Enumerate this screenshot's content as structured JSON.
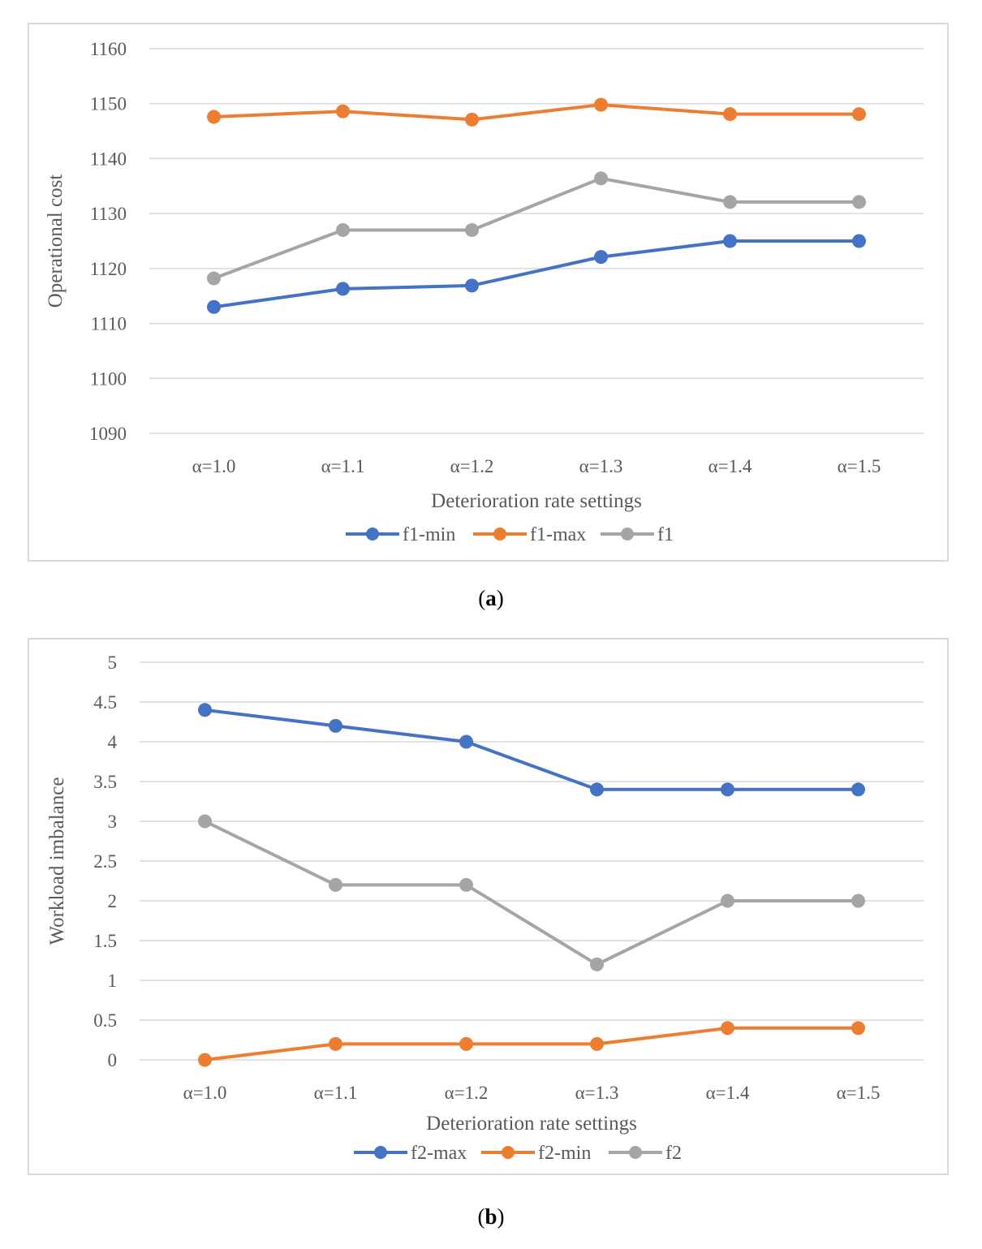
{
  "chart_data": [
    {
      "type": "line",
      "panel": "a",
      "caption": "a",
      "title": "",
      "xlabel": "Deterioration rate settings",
      "ylabel": "Operational cost",
      "categories": [
        "α=1.0",
        "α=1.1",
        "α=1.2",
        "α=1.3",
        "α=1.4",
        "α=1.5"
      ],
      "ylim": [
        1090,
        1160
      ],
      "yticks": [
        1090,
        1100,
        1110,
        1120,
        1130,
        1140,
        1150,
        1160
      ],
      "ytick_labels": [
        "1090",
        "1100",
        "1110",
        "1120",
        "1130",
        "1140",
        "1150",
        "1160"
      ],
      "grid": true,
      "legend": "bottom",
      "series": [
        {
          "name": "f1-min",
          "color": "#4472c4",
          "values": [
            1113,
            1116.3,
            1116.9,
            1122.1,
            1125,
            1125
          ]
        },
        {
          "name": "f1-max",
          "color": "#ed7d31",
          "values": [
            1147.6,
            1148.6,
            1147.1,
            1149.8,
            1148.1,
            1148.1
          ]
        },
        {
          "name": "f1",
          "color": "#a5a5a5",
          "values": [
            1118.2,
            1127,
            1127,
            1136.4,
            1132.1,
            1132.1
          ]
        }
      ]
    },
    {
      "type": "line",
      "panel": "b",
      "caption": "b",
      "title": "",
      "xlabel": "Deterioration rate settings",
      "ylabel": "Workload imbalance",
      "categories": [
        "α=1.0",
        "α=1.1",
        "α=1.2",
        "α=1.3",
        "α=1.4",
        "α=1.5"
      ],
      "ylim": [
        0,
        5
      ],
      "yticks": [
        0,
        0.5,
        1,
        1.5,
        2,
        2.5,
        3,
        3.5,
        4,
        4.5,
        5
      ],
      "ytick_labels": [
        "0",
        "0.5",
        "1",
        "1.5",
        "2",
        "2.5",
        "3",
        "3.5",
        "4",
        "4.5",
        "5"
      ],
      "grid": true,
      "legend": "bottom",
      "series": [
        {
          "name": "f2-max",
          "color": "#4472c4",
          "values": [
            4.4,
            4.2,
            4.0,
            3.4,
            3.4,
            3.4
          ]
        },
        {
          "name": "f2-min",
          "color": "#ed7d31",
          "values": [
            0,
            0.2,
            0.2,
            0.2,
            0.4,
            0.4
          ]
        },
        {
          "name": "f2",
          "color": "#a5a5a5",
          "values": [
            3.0,
            2.2,
            2.2,
            1.2,
            2.0,
            2.0
          ]
        }
      ]
    }
  ]
}
